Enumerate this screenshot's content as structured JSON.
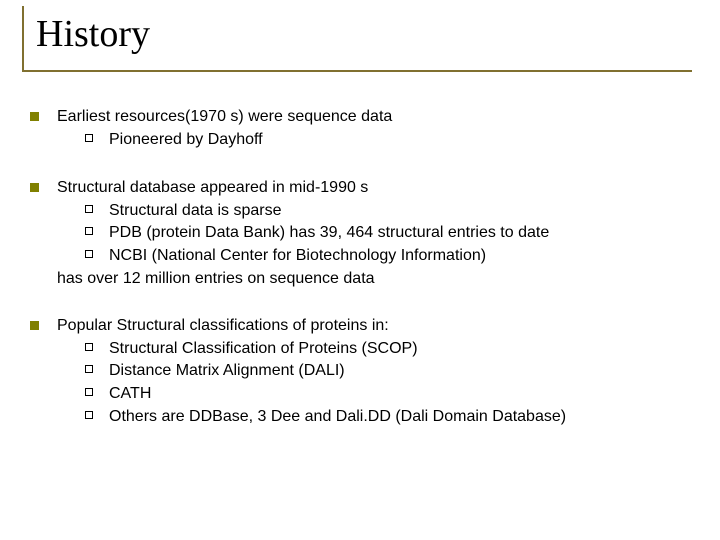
{
  "title": "History",
  "colors": {
    "title_border": "#807030",
    "l1_bullet": "#808000",
    "l2_bullet_border": "#000000",
    "text": "#000000",
    "background": "#ffffff"
  },
  "typography": {
    "title_font": "Times New Roman",
    "title_size_pt": 29,
    "body_font": "Arial",
    "body_size_pt": 12
  },
  "groups": [
    {
      "text": "Earliest resources(1970 s) were sequence data",
      "sub": [
        "Pioneered by Dayhoff"
      ],
      "trail": null
    },
    {
      "text": "Structural database appeared in mid-1990 s",
      "sub": [
        "Structural data is sparse",
        "PDB (protein Data Bank) has 39, 464 structural entries to date",
        "NCBI (National Center for Biotechnology Information)"
      ],
      "trail": "has over 12 million entries on sequence data"
    },
    {
      "text": "Popular Structural classifications of proteins in:",
      "sub": [
        " Structural Classification of Proteins (SCOP)",
        " Distance Matrix Alignment (DALI)",
        "CATH",
        "Others are DDBase, 3 Dee and Dali.DD (Dali Domain Database)"
      ],
      "trail": null
    }
  ]
}
